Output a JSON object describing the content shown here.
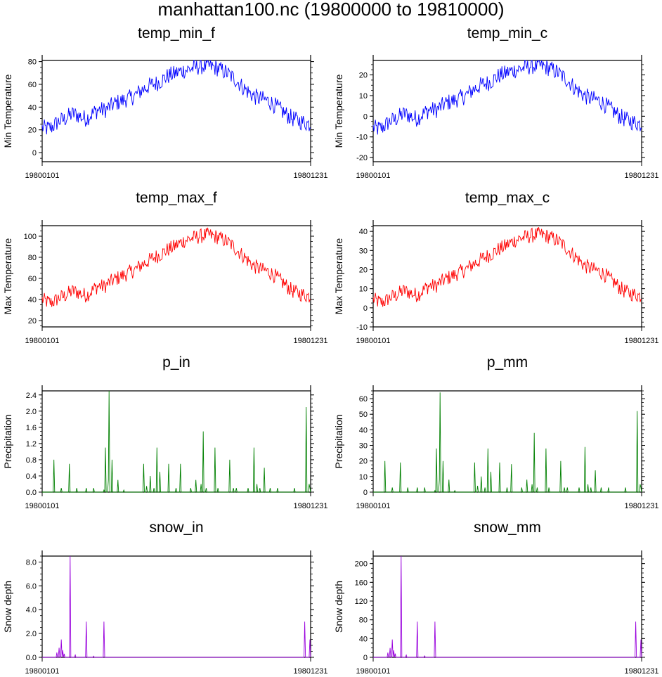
{
  "figure_title": "manhattan100.nc (19800000 to 19810000)",
  "colors": {
    "temp_min": "#0000ff",
    "temp_max": "#ff0000",
    "precip": "#008000",
    "snow": "#9900dd",
    "axis": "#000000"
  },
  "chart_data": [
    {
      "type": "line",
      "title": "temp_min_f",
      "ylabel": "Min Temperature",
      "x_tick_labels": [
        "19800101",
        "19801231"
      ],
      "ylim": [
        -8,
        81
      ],
      "yticks": [
        0,
        20,
        40,
        60,
        80
      ],
      "ytick_labels": [
        "0",
        "20",
        "40",
        "60",
        "80"
      ],
      "series_kind": "temp_min",
      "color": "#0000ff",
      "baseline": [
        22,
        21,
        22,
        25,
        28,
        29,
        32,
        34,
        33,
        31,
        30,
        33,
        36,
        38,
        37,
        39,
        42,
        44,
        45,
        47,
        48,
        50,
        53,
        56,
        58,
        60,
        61,
        63,
        66,
        68,
        69,
        71,
        72,
        73,
        74,
        75,
        76,
        76,
        76,
        75,
        74,
        72,
        70,
        67,
        64,
        60,
        56,
        53,
        50,
        48,
        47,
        46,
        44,
        41,
        38,
        35,
        32,
        30,
        28,
        27,
        26,
        25
      ]
    },
    {
      "type": "line",
      "title": "temp_min_c",
      "ylabel": "Min Temperature",
      "x_tick_labels": [
        "19800101",
        "19801231"
      ],
      "ylim": [
        -22,
        27
      ],
      "yticks": [
        -20,
        -10,
        0,
        10,
        20
      ],
      "ytick_labels": [
        "-20",
        "-10",
        "0",
        "10",
        "20"
      ],
      "series_kind": "temp_min",
      "color": "#0000ff",
      "baseline": [
        -5.6,
        -6.1,
        -5.6,
        -3.9,
        -2.2,
        -1.7,
        0,
        1.1,
        0.6,
        -0.6,
        -1.1,
        0.6,
        2.2,
        3.3,
        2.8,
        3.9,
        5.6,
        6.7,
        7.2,
        8.3,
        8.9,
        10,
        11.7,
        13.3,
        14.4,
        15.6,
        16.1,
        17.2,
        18.9,
        20,
        20.6,
        21.7,
        22.2,
        22.8,
        23.3,
        23.9,
        24.4,
        24.4,
        24.4,
        23.9,
        23.3,
        22.2,
        21.1,
        19.4,
        17.8,
        15.6,
        13.3,
        11.7,
        10,
        8.9,
        8.3,
        7.8,
        6.7,
        5,
        3.3,
        1.7,
        0,
        -1.1,
        -2.2,
        -2.8,
        -3.3,
        -3.9
      ]
    },
    {
      "type": "line",
      "title": "temp_max_f",
      "ylabel": "Max Temperature",
      "x_tick_labels": [
        "19800101",
        "19801231"
      ],
      "ylim": [
        14,
        110
      ],
      "yticks": [
        20,
        40,
        60,
        80,
        100
      ],
      "ytick_labels": [
        "20",
        "40",
        "60",
        "80",
        "100"
      ],
      "series_kind": "temp_max",
      "color": "#ff0000",
      "baseline": [
        40,
        38,
        37,
        39,
        42,
        43,
        46,
        48,
        47,
        45,
        44,
        47,
        51,
        53,
        52,
        55,
        58,
        60,
        62,
        64,
        66,
        68,
        71,
        74,
        76,
        79,
        81,
        83,
        86,
        88,
        90,
        93,
        95,
        97,
        98,
        99,
        100,
        101,
        101,
        100,
        99,
        97,
        95,
        92,
        88,
        84,
        80,
        76,
        72,
        70,
        68,
        67,
        65,
        62,
        58,
        55,
        51,
        48,
        46,
        45,
        44,
        43
      ]
    },
    {
      "type": "line",
      "title": "temp_max_c",
      "ylabel": "Max Temperature",
      "x_tick_labels": [
        "19800101",
        "19801231"
      ],
      "ylim": [
        -10,
        43
      ],
      "yticks": [
        -10,
        0,
        10,
        20,
        30,
        40
      ],
      "ytick_labels": [
        "-10",
        "0",
        "10",
        "20",
        "30",
        "40"
      ],
      "series_kind": "temp_max",
      "color": "#ff0000",
      "baseline": [
        4.4,
        3.3,
        2.8,
        3.9,
        5.6,
        6.1,
        7.8,
        8.9,
        8.3,
        7.2,
        6.7,
        8.3,
        10.6,
        11.7,
        11.1,
        12.8,
        14.4,
        15.6,
        16.7,
        17.8,
        18.9,
        20,
        21.7,
        23.3,
        24.4,
        26.1,
        27.2,
        28.3,
        30,
        31.1,
        32.2,
        33.9,
        35,
        36.1,
        36.7,
        37.2,
        37.8,
        38.3,
        38.3,
        37.8,
        37.2,
        36.1,
        35,
        33.3,
        31.1,
        28.9,
        26.7,
        24.4,
        22.2,
        21.1,
        20,
        19.4,
        18.3,
        16.7,
        14.4,
        12.8,
        10.6,
        8.9,
        7.8,
        7.2,
        6.7,
        6.1
      ]
    },
    {
      "type": "line",
      "title": "p_in",
      "ylabel": "Precipitation",
      "x_tick_labels": [
        "19800101",
        "19801231"
      ],
      "ylim": [
        0,
        2.5
      ],
      "yticks": [
        0,
        0.4,
        0.8,
        1.2,
        1.6,
        2.0,
        2.4
      ],
      "ytick_labels": [
        "0.0",
        "0.4",
        "0.8",
        "1.2",
        "1.6",
        "2.0",
        "2.4"
      ],
      "series_kind": "spikes",
      "color": "#008000",
      "spikes": [
        [
          16,
          0.8
        ],
        [
          26,
          0.1
        ],
        [
          37,
          0.7
        ],
        [
          47,
          0.1
        ],
        [
          60,
          0.1
        ],
        [
          70,
          0.1
        ],
        [
          84,
          0.05
        ],
        [
          86,
          1.1
        ],
        [
          90,
          0.3
        ],
        [
          91,
          2.5
        ],
        [
          95,
          0.8
        ],
        [
          103,
          0.3
        ],
        [
          111,
          0.05
        ],
        [
          138,
          0.7
        ],
        [
          142,
          0.15
        ],
        [
          147,
          0.4
        ],
        [
          152,
          0.1
        ],
        [
          156,
          1.1
        ],
        [
          160,
          0.5
        ],
        [
          172,
          0.7
        ],
        [
          182,
          0.1
        ],
        [
          188,
          0.7
        ],
        [
          202,
          0.1
        ],
        [
          209,
          0.3
        ],
        [
          216,
          0.2
        ],
        [
          219,
          1.5
        ],
        [
          223,
          0.1
        ],
        [
          235,
          1.1
        ],
        [
          239,
          0.1
        ],
        [
          255,
          0.8
        ],
        [
          260,
          0.1
        ],
        [
          264,
          0.1
        ],
        [
          280,
          0.1
        ],
        [
          288,
          1.1
        ],
        [
          292,
          0.2
        ],
        [
          296,
          0.1
        ],
        [
          302,
          0.6
        ],
        [
          310,
          0.1
        ],
        [
          320,
          0.1
        ],
        [
          343,
          0.1
        ],
        [
          359,
          2.1
        ],
        [
          363,
          0.2
        ],
        [
          364,
          0.1
        ]
      ]
    },
    {
      "type": "line",
      "title": "p_mm",
      "ylabel": "Precipitation",
      "x_tick_labels": [
        "19800101",
        "19801231"
      ],
      "ylim": [
        0,
        65
      ],
      "yticks": [
        0,
        10,
        20,
        30,
        40,
        50,
        60
      ],
      "ytick_labels": [
        "0",
        "10",
        "20",
        "30",
        "40",
        "50",
        "60"
      ],
      "series_kind": "spikes",
      "color": "#008000",
      "spikes": [
        [
          16,
          20
        ],
        [
          26,
          3
        ],
        [
          37,
          19
        ],
        [
          47,
          3
        ],
        [
          60,
          3
        ],
        [
          70,
          3
        ],
        [
          84,
          1
        ],
        [
          86,
          28
        ],
        [
          90,
          8
        ],
        [
          91,
          64
        ],
        [
          95,
          20
        ],
        [
          103,
          8
        ],
        [
          111,
          1
        ],
        [
          138,
          19
        ],
        [
          142,
          4
        ],
        [
          147,
          10
        ],
        [
          152,
          3
        ],
        [
          156,
          28
        ],
        [
          160,
          13
        ],
        [
          172,
          19
        ],
        [
          182,
          3
        ],
        [
          188,
          18
        ],
        [
          202,
          3
        ],
        [
          209,
          8
        ],
        [
          216,
          5
        ],
        [
          219,
          38
        ],
        [
          223,
          3
        ],
        [
          235,
          28
        ],
        [
          239,
          3
        ],
        [
          255,
          20
        ],
        [
          260,
          3
        ],
        [
          264,
          3
        ],
        [
          280,
          3
        ],
        [
          288,
          29
        ],
        [
          292,
          5
        ],
        [
          296,
          3
        ],
        [
          302,
          14
        ],
        [
          310,
          3
        ],
        [
          320,
          3
        ],
        [
          343,
          3
        ],
        [
          359,
          52
        ],
        [
          363,
          5
        ],
        [
          364,
          3
        ]
      ]
    },
    {
      "type": "line",
      "title": "snow_in",
      "ylabel": "Snow depth",
      "x_tick_labels": [
        "19800101",
        "19801231"
      ],
      "ylim": [
        0,
        8.5
      ],
      "yticks": [
        0,
        2,
        4,
        6,
        8
      ],
      "ytick_labels": [
        "0.0",
        "2.0",
        "4.0",
        "6.0",
        "8.0"
      ],
      "series_kind": "spikes",
      "color": "#9900dd",
      "spikes": [
        [
          20,
          0.4
        ],
        [
          23,
          0.8
        ],
        [
          26,
          1.5
        ],
        [
          28,
          0.6
        ],
        [
          30,
          0.3
        ],
        [
          38,
          8.5
        ],
        [
          45,
          0.2
        ],
        [
          60,
          3.0
        ],
        [
          70,
          0.1
        ],
        [
          84,
          3.0
        ],
        [
          357,
          3.0
        ],
        [
          364,
          1.5
        ]
      ]
    },
    {
      "type": "line",
      "title": "snow_mm",
      "ylabel": "Snow depth",
      "x_tick_labels": [
        "19800101",
        "19801231"
      ],
      "ylim": [
        0,
        216
      ],
      "yticks": [
        0,
        40,
        80,
        120,
        160,
        200
      ],
      "ytick_labels": [
        "0",
        "40",
        "80",
        "120",
        "160",
        "200"
      ],
      "series_kind": "spikes",
      "color": "#9900dd",
      "spikes": [
        [
          20,
          10
        ],
        [
          23,
          20
        ],
        [
          26,
          38
        ],
        [
          28,
          15
        ],
        [
          30,
          8
        ],
        [
          38,
          216
        ],
        [
          45,
          5
        ],
        [
          60,
          76
        ],
        [
          70,
          3
        ],
        [
          84,
          76
        ],
        [
          357,
          76
        ],
        [
          364,
          38
        ]
      ]
    }
  ]
}
